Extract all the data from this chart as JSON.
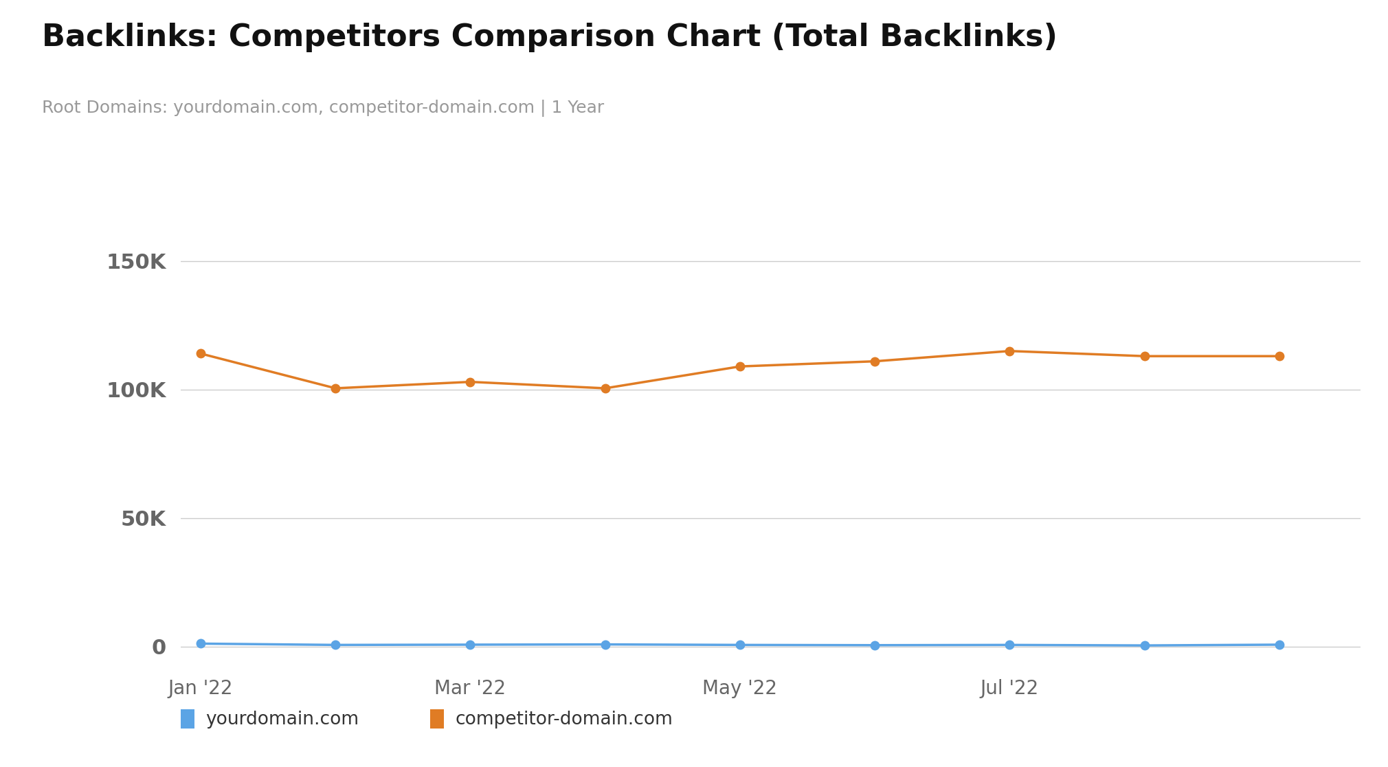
{
  "title": "Backlinks: Competitors Comparison Chart (Total Backlinks)",
  "subtitle": "Root Domains: yourdomain.com, competitor-domain.com | 1 Year",
  "title_fontsize": 32,
  "subtitle_fontsize": 18,
  "background_color": "#ffffff",
  "x_labels": [
    "Jan '22",
    "Mar '22",
    "May '22",
    "Jul '22"
  ],
  "x_tick_positions": [
    0,
    2,
    4,
    6
  ],
  "competitor_x": [
    0,
    1,
    2,
    3,
    4,
    5,
    6,
    7,
    8
  ],
  "competitor_y": [
    114000,
    100500,
    103000,
    100500,
    109000,
    111000,
    115000,
    113000,
    113000
  ],
  "yourdomain_x": [
    0,
    1,
    2,
    3,
    4,
    5,
    6,
    7,
    8
  ],
  "yourdomain_y": [
    1200,
    700,
    800,
    900,
    700,
    600,
    700,
    500,
    800
  ],
  "competitor_color": "#e07c24",
  "yourdomain_color": "#5ba4e5",
  "line_width": 2.5,
  "marker_size": 9,
  "yticks": [
    0,
    50000,
    100000,
    150000
  ],
  "ytick_labels": [
    "0",
    "50K",
    "100K",
    "150K"
  ],
  "ylim": [
    -8000,
    165000
  ],
  "xlim": [
    -0.15,
    8.6
  ],
  "legend_yourdomain": "yourdomain.com",
  "legend_competitor": "competitor-domain.com",
  "grid_color": "#cccccc",
  "tick_label_color": "#666666",
  "title_color": "#111111",
  "subtitle_color": "#999999",
  "ytick_fontsize": 22,
  "xtick_fontsize": 20
}
